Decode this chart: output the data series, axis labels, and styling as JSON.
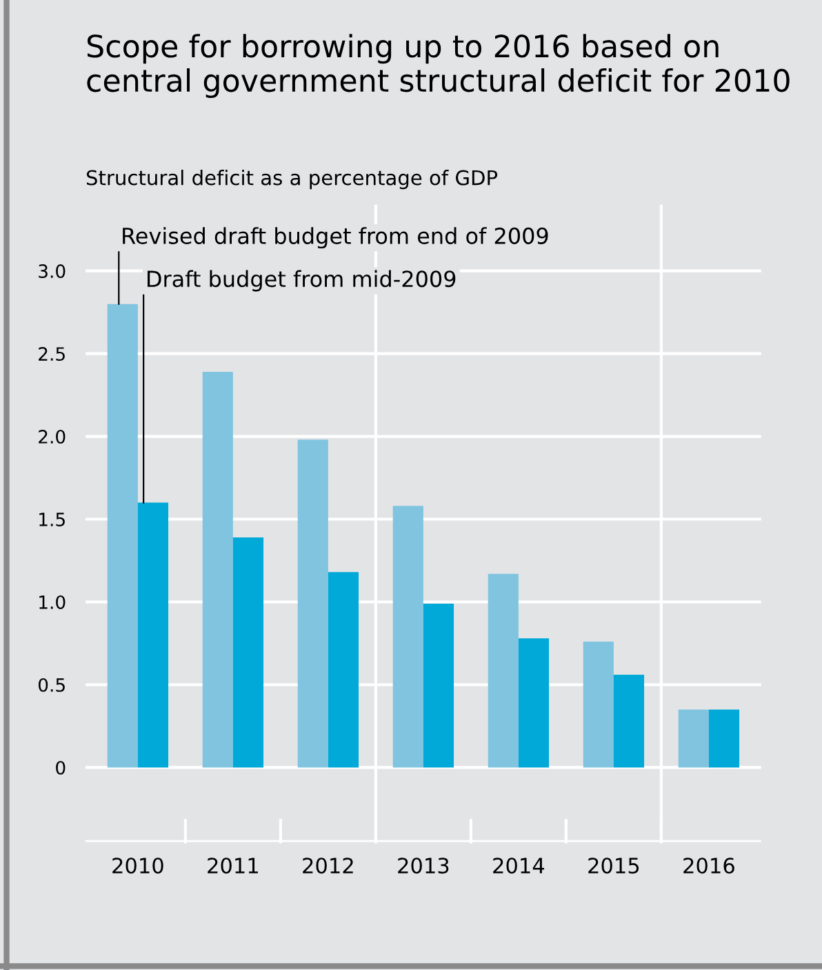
{
  "chart_data": {
    "type": "bar",
    "title": "Scope for borrowing up to 2016 based on central government structural deficit for 2010",
    "ylabel": "Structural deficit as a percentage of GDP",
    "categories": [
      "2010",
      "2011",
      "2012",
      "2013",
      "2014",
      "2015",
      "2016"
    ],
    "series": [
      {
        "name": "Revised draft budget from end of 2009",
        "color": "#80c4e0",
        "values": [
          2.8,
          2.39,
          1.98,
          1.58,
          1.17,
          0.76,
          0.35
        ]
      },
      {
        "name": "Draft budget from mid-2009",
        "color": "#00a9d8",
        "values": [
          1.6,
          1.39,
          1.18,
          0.99,
          0.78,
          0.56,
          0.35
        ]
      }
    ],
    "ylim": [
      -0.45,
      3.4
    ],
    "yticks": [
      {
        "value": 0,
        "label": "0"
      },
      {
        "value": 0.5,
        "label": "0.5"
      },
      {
        "value": 1.0,
        "label": "1.0"
      },
      {
        "value": 1.5,
        "label": "1.5"
      },
      {
        "value": 2.0,
        "label": "2.0"
      },
      {
        "value": 2.5,
        "label": "2.5"
      },
      {
        "value": 3.0,
        "label": "3.0"
      }
    ],
    "grid": "y"
  }
}
